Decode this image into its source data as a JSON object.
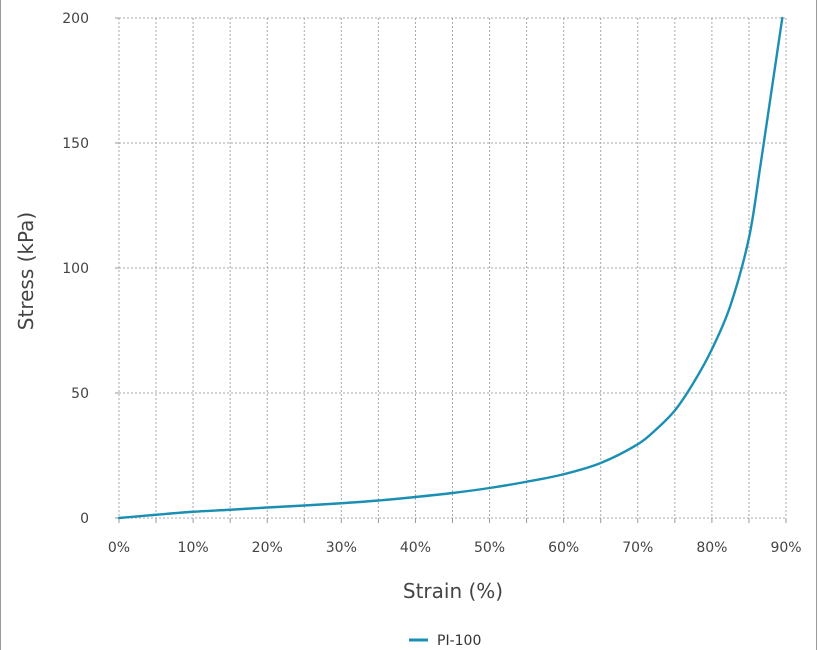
{
  "chart_data": {
    "type": "line",
    "xlabel": "Strain (%)",
    "ylabel": "Stress (kPa)",
    "xlim": [
      0,
      90
    ],
    "ylim": [
      0,
      200
    ],
    "x_ticks": [
      0,
      10,
      20,
      30,
      40,
      50,
      60,
      70,
      80,
      90
    ],
    "x_tick_labels": [
      "0%",
      "10%",
      "20%",
      "30%",
      "40%",
      "50%",
      "60%",
      "70%",
      "80%",
      "90%"
    ],
    "x_minor_gridlines": [
      5,
      15,
      25,
      35,
      45,
      55,
      65,
      75,
      85
    ],
    "y_ticks": [
      0,
      50,
      100,
      150,
      200
    ],
    "y_tick_labels": [
      "0",
      "50",
      "100",
      "150",
      "200"
    ],
    "grid": true,
    "grid_style": "dotted",
    "legend_position": "bottom-center",
    "series": [
      {
        "name": "PI-100",
        "color": "#1a8fb3",
        "x": [
          0,
          5,
          10,
          15,
          20,
          25,
          30,
          35,
          40,
          45,
          50,
          55,
          60,
          65,
          70,
          72.5,
          75,
          77.5,
          80,
          82.5,
          85,
          86.5,
          88,
          89.5
        ],
        "y": [
          0,
          1.3,
          2.5,
          3.3,
          4.2,
          5.0,
          5.9,
          7.0,
          8.4,
          10.0,
          12.0,
          14.5,
          17.5,
          22.0,
          29.5,
          35.5,
          43.0,
          54.0,
          67.5,
          85.0,
          112.0,
          140.0,
          170.0,
          200.0
        ]
      }
    ]
  }
}
